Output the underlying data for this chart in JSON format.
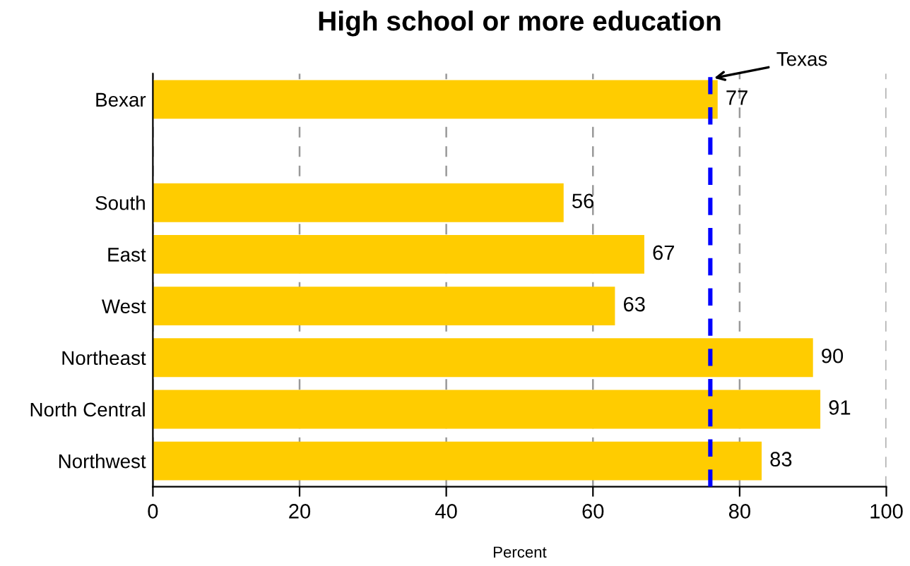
{
  "chart_data": {
    "type": "bar",
    "orientation": "horizontal",
    "title": "High school or more education",
    "xlabel": "Percent",
    "categories": [
      "Bexar",
      null,
      "South",
      "East",
      "West",
      "Northeast",
      "North Central",
      "Northwest"
    ],
    "values": [
      77,
      null,
      56,
      67,
      63,
      90,
      91,
      83
    ],
    "colors": [
      "#ffcc00",
      "#ffcc00",
      "#ffcc00",
      "#ffcc00",
      "#ffcc00",
      "#ffcc00",
      "#ffcc00",
      "#ffcc00"
    ],
    "xlim": [
      0,
      100
    ],
    "xticks": [
      0,
      20,
      40,
      60,
      80,
      100
    ],
    "grid": "x",
    "data_labels": true,
    "ref_lines": [
      {
        "axis": "x",
        "value": 76,
        "label": "Texas",
        "color": "#0000ff",
        "line_style": "dashed"
      }
    ]
  }
}
